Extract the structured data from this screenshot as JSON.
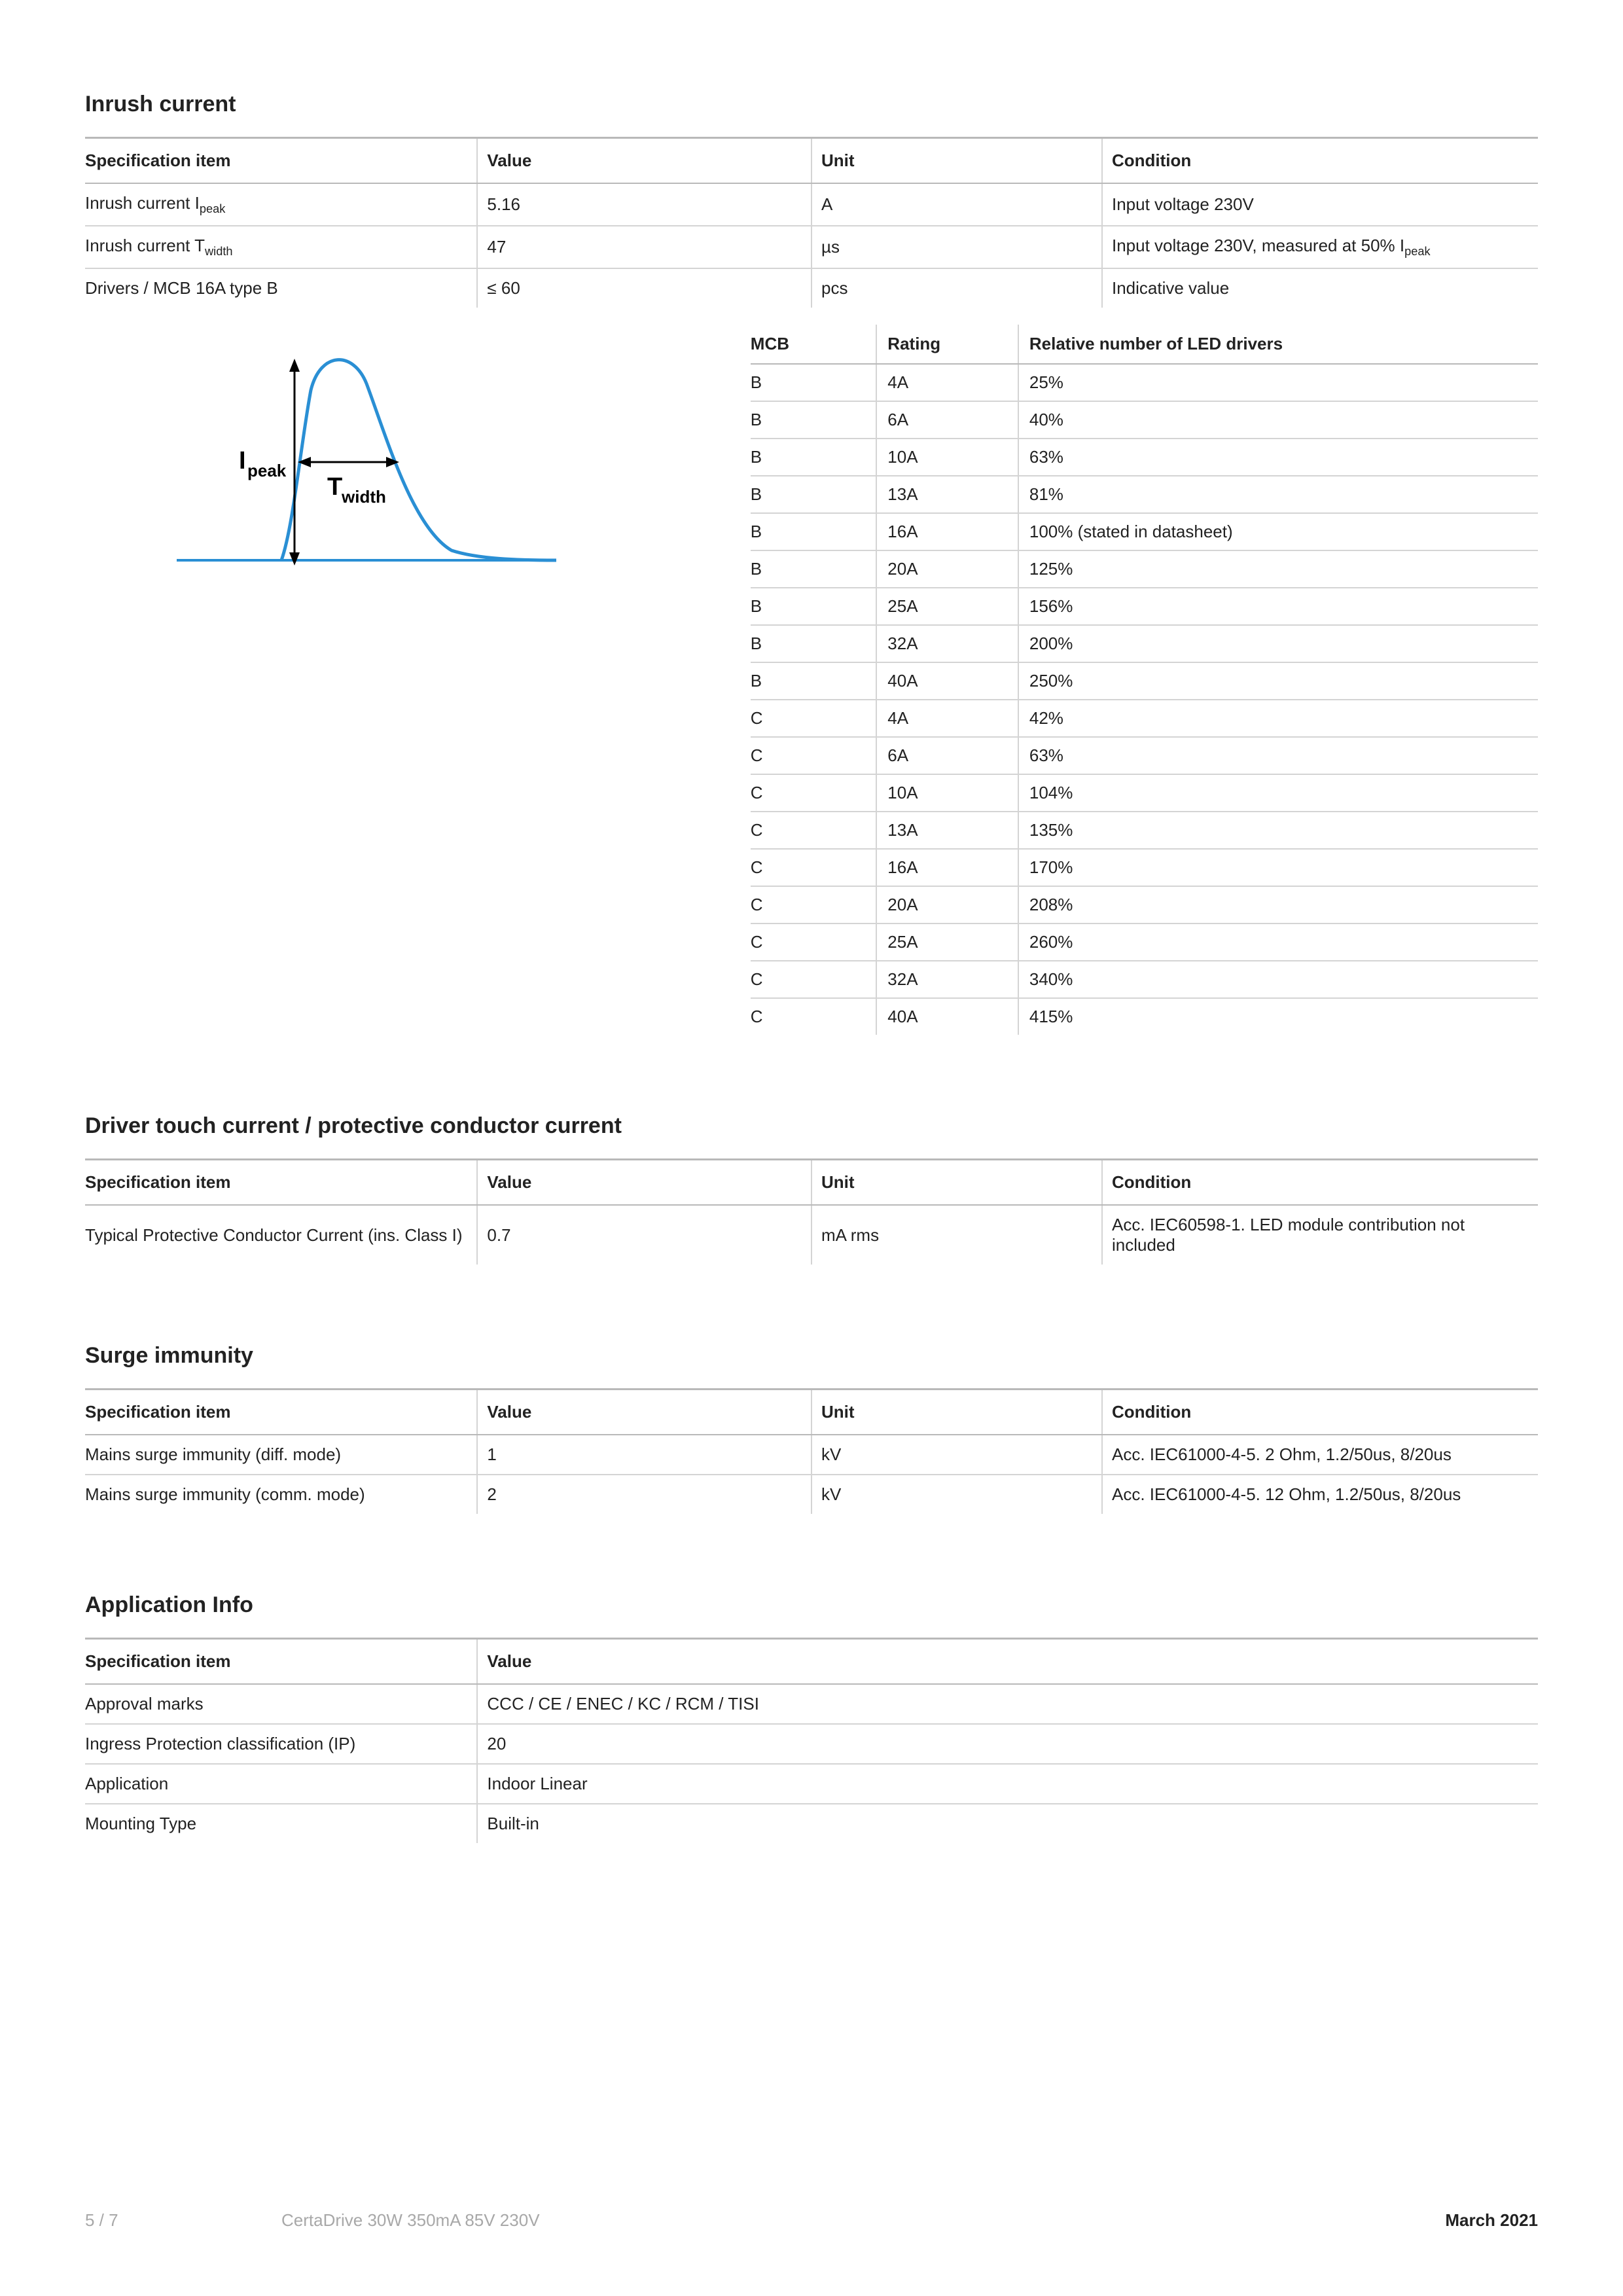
{
  "sections": {
    "inrush": {
      "title": "Inrush current",
      "headers": [
        "Specification item",
        "Value",
        "Unit",
        "Condition"
      ],
      "rows": [
        {
          "item_html": "Inrush current I<sub>peak</sub>",
          "value": "5.16",
          "unit": "A",
          "cond": "Input voltage 230V"
        },
        {
          "item_html": "Inrush current T<sub>width</sub>",
          "value": "47",
          "unit": "µs",
          "cond_html": "Input voltage 230V, measured at 50% I<sub>peak</sub>"
        },
        {
          "item_html": "Drivers / MCB 16A type B",
          "value": "≤ 60",
          "unit": "pcs",
          "cond": "Indicative value"
        }
      ]
    },
    "diagram": {
      "label_ipeak": "I",
      "label_ipeak_sub": "peak",
      "label_twidth": "T",
      "label_twidth_sub": "width",
      "curve_color": "#2a8fd4",
      "arrow_color": "#000000"
    },
    "mcb": {
      "headers": [
        "MCB",
        "Rating",
        "Relative number of LED drivers"
      ],
      "rows": [
        [
          "B",
          "4A",
          "25%"
        ],
        [
          "B",
          "6A",
          "40%"
        ],
        [
          "B",
          "10A",
          "63%"
        ],
        [
          "B",
          "13A",
          "81%"
        ],
        [
          "B",
          "16A",
          "100% (stated in datasheet)"
        ],
        [
          "B",
          "20A",
          "125%"
        ],
        [
          "B",
          "25A",
          "156%"
        ],
        [
          "B",
          "32A",
          "200%"
        ],
        [
          "B",
          "40A",
          "250%"
        ],
        [
          "C",
          "4A",
          "42%"
        ],
        [
          "C",
          "6A",
          "63%"
        ],
        [
          "C",
          "10A",
          "104%"
        ],
        [
          "C",
          "13A",
          "135%"
        ],
        [
          "C",
          "16A",
          "170%"
        ],
        [
          "C",
          "20A",
          "208%"
        ],
        [
          "C",
          "25A",
          "260%"
        ],
        [
          "C",
          "32A",
          "340%"
        ],
        [
          "C",
          "40A",
          "415%"
        ]
      ]
    },
    "touch": {
      "title": "Driver touch current / protective conductor current",
      "headers": [
        "Specification item",
        "Value",
        "Unit",
        "Condition"
      ],
      "rows": [
        {
          "item": "Typical Protective Conductor Current (ins. Class I)",
          "value": "0.7",
          "unit": "mA rms",
          "cond": "Acc. IEC60598-1. LED module contribution not included"
        }
      ]
    },
    "surge": {
      "title": "Surge immunity",
      "headers": [
        "Specification item",
        "Value",
        "Unit",
        "Condition"
      ],
      "rows": [
        {
          "item": "Mains surge immunity (diff. mode)",
          "value": "1",
          "unit": "kV",
          "cond": "Acc. IEC61000-4-5. 2 Ohm, 1.2/50us, 8/20us"
        },
        {
          "item": "Mains surge immunity (comm. mode)",
          "value": "2",
          "unit": "kV",
          "cond": "Acc. IEC61000-4-5. 12 Ohm, 1.2/50us, 8/20us"
        }
      ]
    },
    "app": {
      "title": "Application Info",
      "headers": [
        "Specification item",
        "Value"
      ],
      "rows": [
        {
          "item": "Approval marks",
          "value": "CCC / CE / ENEC / KC / RCM / TISI"
        },
        {
          "item": "Ingress Protection classification (IP)",
          "value": "20"
        },
        {
          "item": "Application",
          "value": "Indoor Linear"
        },
        {
          "item": "Mounting Type",
          "value": "Built-in"
        }
      ]
    }
  },
  "footer": {
    "page": "5 / 7",
    "title": "CertaDrive 30W 350mA 85V 230V",
    "date": "March 2021"
  }
}
